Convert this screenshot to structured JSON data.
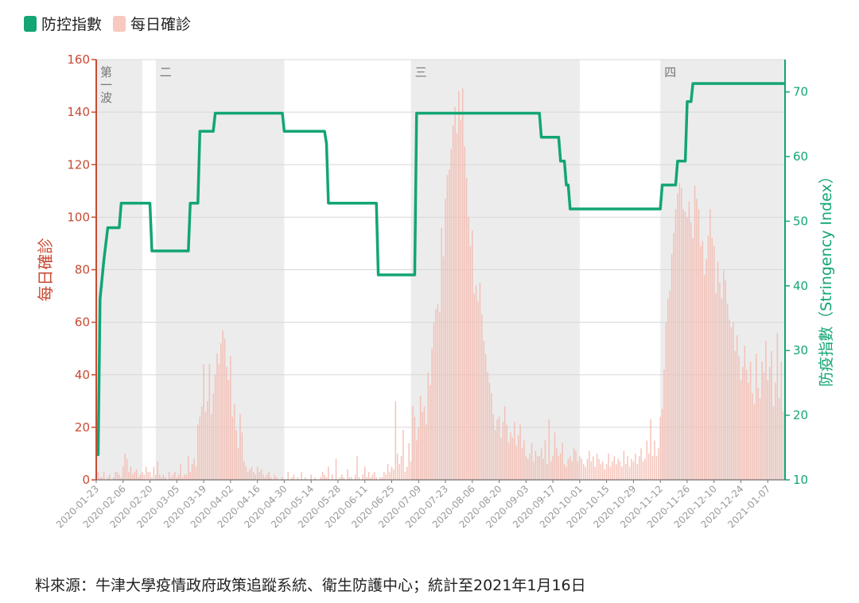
{
  "chart_data": {
    "type": "bar+line",
    "legend": [
      {
        "name": "防控指數",
        "color": "#13a574"
      },
      {
        "name": "每日確診",
        "color": "#f8c9c0"
      }
    ],
    "y_left": {
      "label": "每日確診",
      "ticks": [
        "0",
        "20",
        "40",
        "60",
        "80",
        "100",
        "120",
        "140",
        "160"
      ],
      "range": [
        0,
        160
      ],
      "color": "#c94a33"
    },
    "y_right": {
      "label": "防疫指數（Stringency Index）",
      "ticks": [
        "10",
        "20",
        "30",
        "40",
        "50",
        "60",
        "70"
      ],
      "range": [
        10,
        75
      ],
      "color": "#13a574"
    },
    "start_date": "2020-01-23",
    "end_date": "2021-01-16",
    "x_ticks": [
      "2020-01-23",
      "2020-02-06",
      "2020-02-20",
      "2020-03-05",
      "2020-03-19",
      "2020-04-02",
      "2020-04-16",
      "2020-04-30",
      "2020-05-14",
      "2020-05-28",
      "2020-06-11",
      "2020-06-25",
      "2020-07-09",
      "2020-07-23",
      "2020-08-06",
      "2020-08-20",
      "2020-09-03",
      "2020-09-17",
      "2020-10-01",
      "2020-10-15",
      "2020-10-29",
      "2020-11-12",
      "2020-11-26",
      "2020-12-10",
      "2020-12-24",
      "2021-01-07"
    ],
    "waves": [
      {
        "label": "第一波",
        "start": "2020-01-23",
        "end": "2020-02-16"
      },
      {
        "label": "二",
        "start": "2020-02-23",
        "end": "2020-04-30"
      },
      {
        "label": "三",
        "start": "2020-07-05",
        "end": "2020-10-01"
      },
      {
        "label": "四",
        "start": "2020-11-12",
        "end": "2021-01-16"
      }
    ],
    "stringency": [
      [
        "2020-01-23",
        13.9
      ],
      [
        "2020-01-24",
        13.9
      ],
      [
        "2020-01-25",
        38
      ],
      [
        "2020-01-27",
        44
      ],
      [
        "2020-01-29",
        49
      ],
      [
        "2020-02-04",
        49
      ],
      [
        "2020-02-05",
        52.8
      ],
      [
        "2020-02-20",
        52.8
      ],
      [
        "2020-02-21",
        45.4
      ],
      [
        "2020-03-11",
        45.4
      ],
      [
        "2020-03-12",
        52.8
      ],
      [
        "2020-03-16",
        52.8
      ],
      [
        "2020-03-17",
        63.9
      ],
      [
        "2020-03-24",
        63.9
      ],
      [
        "2020-03-25",
        66.7
      ],
      [
        "2020-04-29",
        66.7
      ],
      [
        "2020-04-30",
        63.9
      ],
      [
        "2020-05-21",
        63.9
      ],
      [
        "2020-05-22",
        62.0
      ],
      [
        "2020-05-23",
        52.8
      ],
      [
        "2020-06-17",
        52.8
      ],
      [
        "2020-06-18",
        41.7
      ],
      [
        "2020-07-07",
        41.7
      ],
      [
        "2020-07-08",
        66.7
      ],
      [
        "2020-09-10",
        66.7
      ],
      [
        "2020-09-11",
        63.0
      ],
      [
        "2020-09-20",
        63.0
      ],
      [
        "2020-09-21",
        59.3
      ],
      [
        "2020-09-23",
        59.3
      ],
      [
        "2020-09-24",
        55.6
      ],
      [
        "2020-09-25",
        55.6
      ],
      [
        "2020-09-26",
        51.9
      ],
      [
        "2020-11-12",
        51.9
      ],
      [
        "2020-11-13",
        55.6
      ],
      [
        "2020-11-20",
        55.6
      ],
      [
        "2020-11-21",
        59.3
      ],
      [
        "2020-11-25",
        59.3
      ],
      [
        "2020-11-26",
        68.5
      ],
      [
        "2020-11-28",
        68.5
      ],
      [
        "2020-11-29",
        71.3
      ],
      [
        "2021-01-16",
        71.3
      ]
    ],
    "daily_cases": [
      2,
      3,
      1,
      1,
      3,
      0,
      1,
      2,
      0,
      1,
      3,
      3,
      2,
      1,
      5,
      10,
      8,
      3,
      5,
      2,
      3,
      4,
      1,
      2,
      3,
      2,
      5,
      3,
      3,
      1,
      5,
      2,
      7,
      2,
      1,
      2,
      1,
      0,
      3,
      1,
      2,
      3,
      1,
      2,
      6,
      1,
      2,
      2,
      9,
      3,
      6,
      8,
      5,
      21,
      24,
      28,
      44,
      26,
      30,
      44,
      25,
      33,
      40,
      48,
      44,
      52,
      57,
      54,
      43,
      38,
      47,
      24,
      29,
      19,
      12,
      25,
      18,
      7,
      5,
      3,
      4,
      5,
      3,
      2,
      5,
      3,
      4,
      2,
      1,
      2,
      3,
      1,
      0,
      2,
      1,
      0,
      0,
      1,
      0,
      0,
      3,
      0,
      1,
      2,
      0,
      1,
      0,
      3,
      0,
      1,
      0,
      0,
      2,
      0,
      1,
      0,
      0,
      1,
      3,
      2,
      1,
      5,
      0,
      2,
      0,
      8,
      0,
      1,
      2,
      1,
      0,
      4,
      1,
      1,
      0,
      2,
      9,
      1,
      0,
      2,
      5,
      1,
      3,
      1,
      2,
      3,
      1,
      0,
      1,
      1,
      3,
      2,
      6,
      3,
      5,
      4,
      30,
      10,
      6,
      9,
      19,
      3,
      5,
      14,
      7,
      28,
      24,
      15,
      20,
      32,
      26,
      28,
      21,
      41,
      36,
      50,
      60,
      65,
      67,
      64,
      96,
      85,
      107,
      116,
      118,
      126,
      135,
      142,
      132,
      148,
      137,
      149,
      127,
      115,
      100,
      89,
      95,
      71,
      74,
      68,
      75,
      63,
      53,
      48,
      41,
      37,
      33,
      25,
      19,
      23,
      24,
      16,
      22,
      28,
      21,
      14,
      18,
      16,
      22,
      13,
      17,
      21,
      12,
      15,
      9,
      8,
      10,
      14,
      7,
      11,
      9,
      9,
      12,
      8,
      15,
      6,
      23,
      7,
      9,
      18,
      12,
      9,
      10,
      14,
      6,
      5,
      8,
      9,
      7,
      12,
      11,
      7,
      9,
      8,
      6,
      5,
      8,
      11,
      7,
      9,
      5,
      10,
      8,
      6,
      7,
      4,
      6,
      10,
      5,
      7,
      9,
      6,
      8,
      7,
      5,
      11,
      6,
      9,
      5,
      8,
      7,
      10,
      6,
      9,
      12,
      7,
      8,
      15,
      10,
      23,
      9,
      15,
      9,
      12,
      24,
      27,
      42,
      60,
      69,
      72,
      86,
      94,
      103,
      109,
      113,
      111,
      103,
      102,
      100,
      106,
      98,
      92,
      112,
      107,
      103,
      89,
      91,
      78,
      84,
      93,
      103,
      92,
      89,
      71,
      83,
      75,
      69,
      80,
      76,
      67,
      61,
      58,
      60,
      49,
      55,
      47,
      38,
      43,
      51,
      42,
      37,
      45,
      33,
      29,
      48,
      35,
      31,
      45,
      41,
      53,
      38,
      43,
      49,
      28,
      37,
      56,
      31,
      45,
      26,
      60,
      33,
      54,
      44,
      39
    ],
    "source": "料來源：牛津大學疫情政府政策追蹤系統、衛生防護中心；統計至2021年1月16日"
  }
}
